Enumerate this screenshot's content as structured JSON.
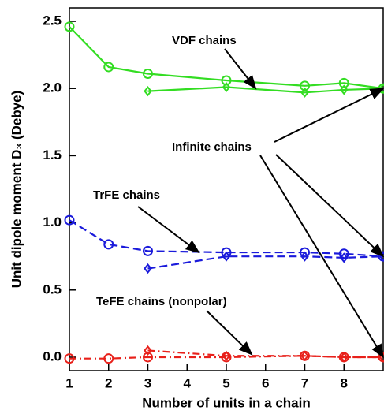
{
  "chart_data": {
    "type": "line",
    "x_label": "Number of units in a chain",
    "y_label": "Unit dipole moment D₃ (Debye)",
    "xlim": [
      1,
      9
    ],
    "xticks": [
      1,
      2,
      3,
      4,
      5,
      6,
      7,
      8
    ],
    "ylim": [
      -0.1,
      2.6
    ],
    "yticks": [
      {
        "value": 0,
        "label": "0.0"
      },
      0.5,
      {
        "value": 1,
        "label": "1.0"
      },
      1.5,
      {
        "value": 2,
        "label": "2.0"
      },
      2.5
    ],
    "series": [
      {
        "color": "#33dd22",
        "marker": "circle",
        "dash": "solid",
        "x": [
          1,
          2,
          3,
          5,
          7,
          8,
          9
        ],
        "values": [
          2.46,
          2.16,
          2.11,
          2.06,
          2.02,
          2.04,
          2.0
        ]
      },
      {
        "color": "#33dd22",
        "marker": "diamond",
        "dash": "solid",
        "x": [
          3,
          5,
          7,
          8,
          9
        ],
        "values": [
          1.98,
          2.01,
          1.97,
          1.99,
          2.0
        ]
      },
      {
        "color": "#1a1adb",
        "marker": "circle",
        "dash": "dashed",
        "x": [
          1,
          2,
          3,
          5,
          7,
          8,
          9
        ],
        "values": [
          1.02,
          0.84,
          0.79,
          0.78,
          0.78,
          0.77,
          0.75
        ]
      },
      {
        "color": "#1a1adb",
        "marker": "diamond",
        "dash": "dashed",
        "x": [
          3,
          5,
          7,
          8,
          9
        ],
        "values": [
          0.66,
          0.75,
          0.75,
          0.74,
          0.75
        ]
      },
      {
        "color": "#e8201a",
        "marker": "circle",
        "dash": "dashdot",
        "x": [
          1,
          2,
          3,
          5,
          7,
          8,
          9
        ],
        "values": [
          -0.01,
          -0.01,
          0.0,
          0.0,
          0.01,
          0.0,
          0.0
        ]
      },
      {
        "color": "#e8201a",
        "marker": "diamond",
        "dash": "dashdot",
        "x": [
          3,
          5,
          7,
          8,
          9
        ],
        "values": [
          0.05,
          0.01,
          0.01,
          0.0,
          0.0
        ]
      }
    ],
    "annotations": [
      "VDF chains",
      "Infinite chains",
      "TrFE chains",
      "TeFE chains (nonpolar)"
    ]
  }
}
